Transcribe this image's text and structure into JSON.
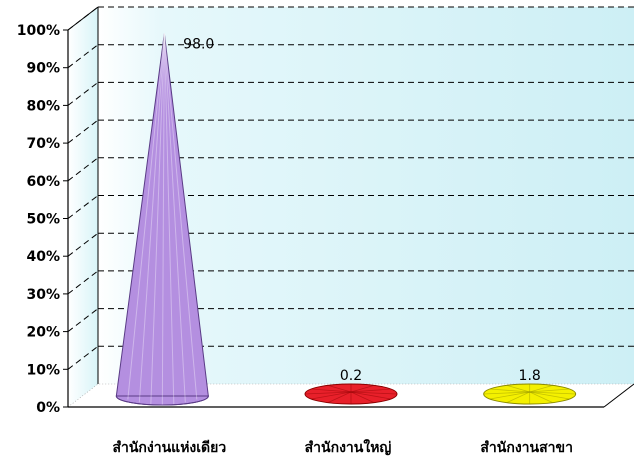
{
  "chart_data": {
    "type": "bar",
    "shape": "cone-3d",
    "categories": [
      "สำนักง่านแห่งเดียว",
      "สำนักงานใหญ่",
      "สำนักงานสาขา"
    ],
    "values": [
      98.0,
      0.2,
      1.8
    ],
    "data_labels": [
      "98.0",
      "0.2",
      "1.8"
    ],
    "ylim": [
      0,
      100
    ],
    "yticks": [
      "0%",
      "10%",
      "20%",
      "30%",
      "40%",
      "50%",
      "60%",
      "70%",
      "80%",
      "90%",
      "100%"
    ],
    "title": "",
    "xlabel": "",
    "ylabel": "",
    "grid": true,
    "colors": [
      "#b48fe0",
      "#e8202a",
      "#f4f000"
    ],
    "back_wall_color": "#d7f4f8"
  }
}
